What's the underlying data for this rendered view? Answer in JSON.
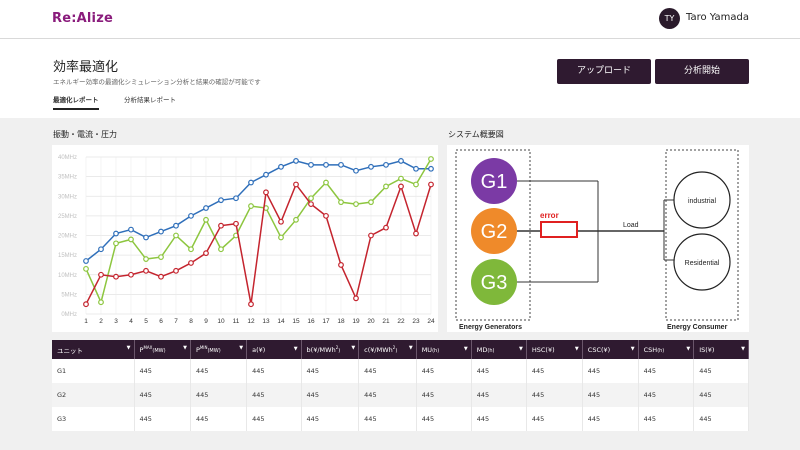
{
  "app": {
    "logo": "Re:Alize"
  },
  "user": {
    "initials": "TY",
    "name": "Taro Yamada"
  },
  "page": {
    "title": "効率最適化",
    "subtitle": "エネルギー効率の最適化シミュレーション分析と結果の確認が可能です"
  },
  "actions": {
    "upload": "アップロード",
    "analyze": "分析開始"
  },
  "tabs": [
    {
      "label": "最適化レポート",
      "active": true
    },
    {
      "label": "分析結果レポート",
      "active": false
    }
  ],
  "chart_section": {
    "title": "振動・電流・圧力"
  },
  "diagram_section": {
    "title": "システム概要図"
  },
  "chart_data": {
    "type": "line",
    "x": [
      1,
      2,
      3,
      4,
      5,
      6,
      7,
      8,
      9,
      10,
      11,
      12,
      13,
      14,
      15,
      16,
      17,
      18,
      19,
      20,
      21,
      22,
      23,
      24
    ],
    "yticks": [
      "0MHz",
      "5MHz",
      "10MHz",
      "15MHz",
      "20MHz",
      "25MHz",
      "30MHz",
      "35MHz",
      "40MHz"
    ],
    "ylim": [
      0,
      40
    ],
    "grid": true,
    "series": [
      {
        "color": "#2f6fba",
        "values": [
          13.5,
          16.5,
          20.5,
          21.5,
          19.5,
          21,
          22.5,
          25,
          27,
          29,
          29.5,
          33.5,
          35.5,
          37.5,
          39,
          38,
          38,
          38,
          36.5,
          37.5,
          38,
          39,
          37,
          37
        ]
      },
      {
        "color": "#8dc63f",
        "values": [
          11.5,
          3,
          18,
          19,
          14,
          14.5,
          20,
          16.5,
          24,
          16.5,
          20,
          27.5,
          27,
          19.5,
          24,
          29.5,
          33.5,
          28.5,
          28,
          28.5,
          32.5,
          34.5,
          33,
          39.5
        ]
      },
      {
        "color": "#c4242e",
        "values": [
          2.5,
          10,
          9.5,
          10,
          11,
          9.5,
          11,
          13,
          15.5,
          22.5,
          23,
          2.5,
          31,
          23.5,
          33,
          28,
          25,
          12.5,
          4,
          20,
          22,
          32.5,
          20.5,
          33
        ]
      }
    ]
  },
  "diagram": {
    "generators": [
      {
        "label": "G1",
        "color": "#7b3aa5"
      },
      {
        "label": "G2",
        "color": "#ef8a2a"
      },
      {
        "label": "G3",
        "color": "#7fb83a"
      }
    ],
    "error_label": "error",
    "error_color": "#e02020",
    "load_label": "Load",
    "consumers": [
      {
        "label": "industrial"
      },
      {
        "label": "Residential"
      }
    ],
    "generators_caption": "Energy Generators",
    "consumers_caption": "Energy Consumer"
  },
  "table": {
    "columns": [
      {
        "main": "ユニット"
      },
      {
        "main": "P",
        "sup": "MAX",
        "unit": "(MW)"
      },
      {
        "main": "P",
        "sup": "MIN",
        "unit": "(MW)"
      },
      {
        "main": "a(¥)"
      },
      {
        "main": "b(¥/MWh",
        "sup": "2",
        "unit": ")"
      },
      {
        "main": "c(¥/MWh",
        "sup": "2",
        "unit": ")"
      },
      {
        "main": "MU",
        "unit": "(h)"
      },
      {
        "main": "MD",
        "unit": "(h)"
      },
      {
        "main": "HSC(¥)"
      },
      {
        "main": "CSC(¥)"
      },
      {
        "main": "CSH",
        "unit": "(h)"
      },
      {
        "main": "IS(¥)"
      }
    ],
    "rows": [
      [
        "G1",
        "445",
        "445",
        "445",
        "445",
        "445",
        "445",
        "445",
        "445",
        "445",
        "445",
        "445"
      ],
      [
        "G2",
        "445",
        "445",
        "445",
        "445",
        "445",
        "445",
        "445",
        "445",
        "445",
        "445",
        "445"
      ],
      [
        "G3",
        "445",
        "445",
        "445",
        "445",
        "445",
        "445",
        "445",
        "445",
        "445",
        "445",
        "445"
      ]
    ]
  }
}
